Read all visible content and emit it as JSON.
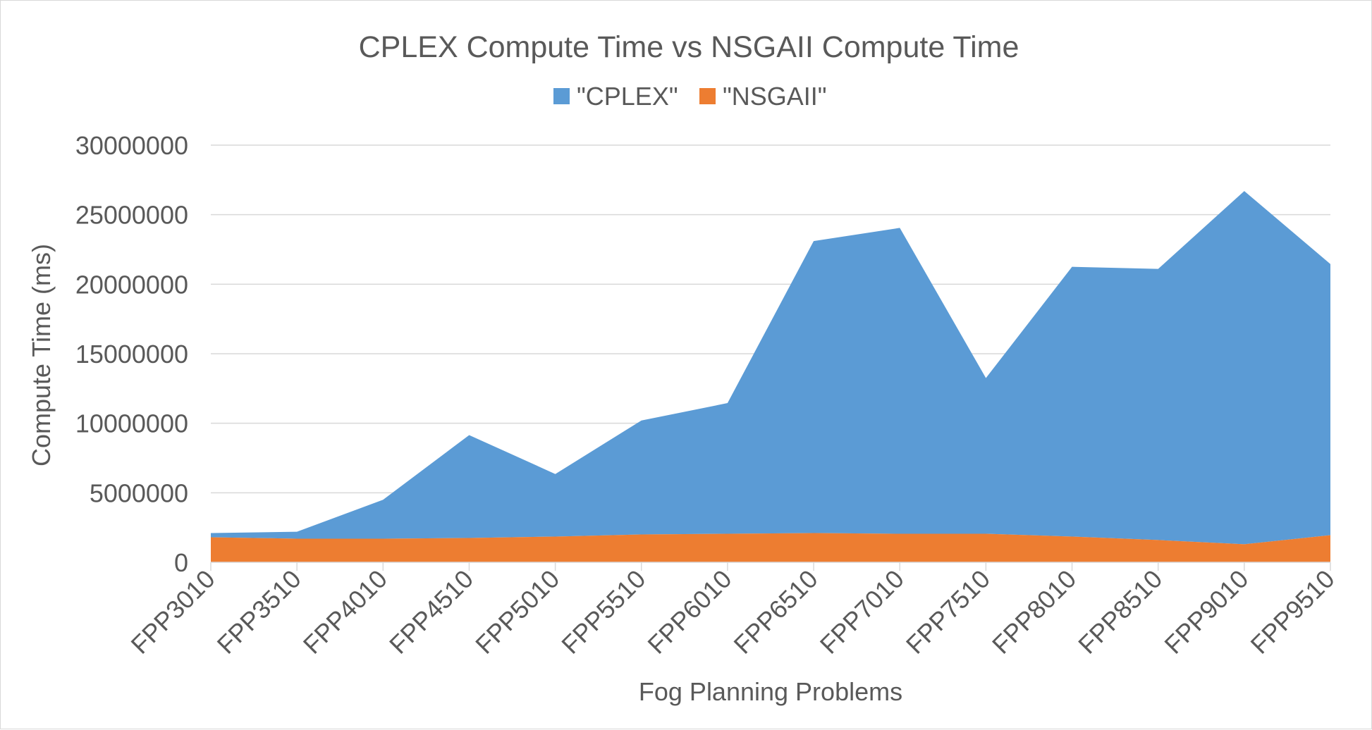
{
  "chart_data": {
    "type": "area",
    "title": "CPLEX Compute Time vs NSGAII Compute Time",
    "xlabel": "Fog Planning Problems",
    "ylabel": "Compute Time (ms)",
    "ylim": [
      0,
      30000000
    ],
    "yticks": [
      0,
      5000000,
      10000000,
      15000000,
      20000000,
      25000000,
      30000000
    ],
    "ytick_labels": [
      "0",
      "5000000",
      "10000000",
      "15000000",
      "20000000",
      "25000000",
      "30000000"
    ],
    "grid": true,
    "legend_position": "top",
    "categories": [
      "FPP3010",
      "FPP3510",
      "FPP4010",
      "FPP4510",
      "FPP5010",
      "FPP5510",
      "FPP6010",
      "FPP6510",
      "FPP7010",
      "FPP7510",
      "FPP8010",
      "FPP8510",
      "FPP9010",
      "FPP9510"
    ],
    "series": [
      {
        "name": "\"CPLEX\"",
        "color": "#5b9bd5",
        "values": [
          300000,
          500000,
          2800000,
          7400000,
          4500000,
          8200000,
          9400000,
          21000000,
          22000000,
          11200000,
          19400000,
          19500000,
          25400000,
          19500000
        ]
      },
      {
        "name": "\"NSGAII\"",
        "color": "#ed7d31",
        "values": [
          1800000,
          1700000,
          1700000,
          1750000,
          1850000,
          2000000,
          2050000,
          2100000,
          2050000,
          2050000,
          1850000,
          1600000,
          1300000,
          1950000
        ]
      }
    ]
  }
}
